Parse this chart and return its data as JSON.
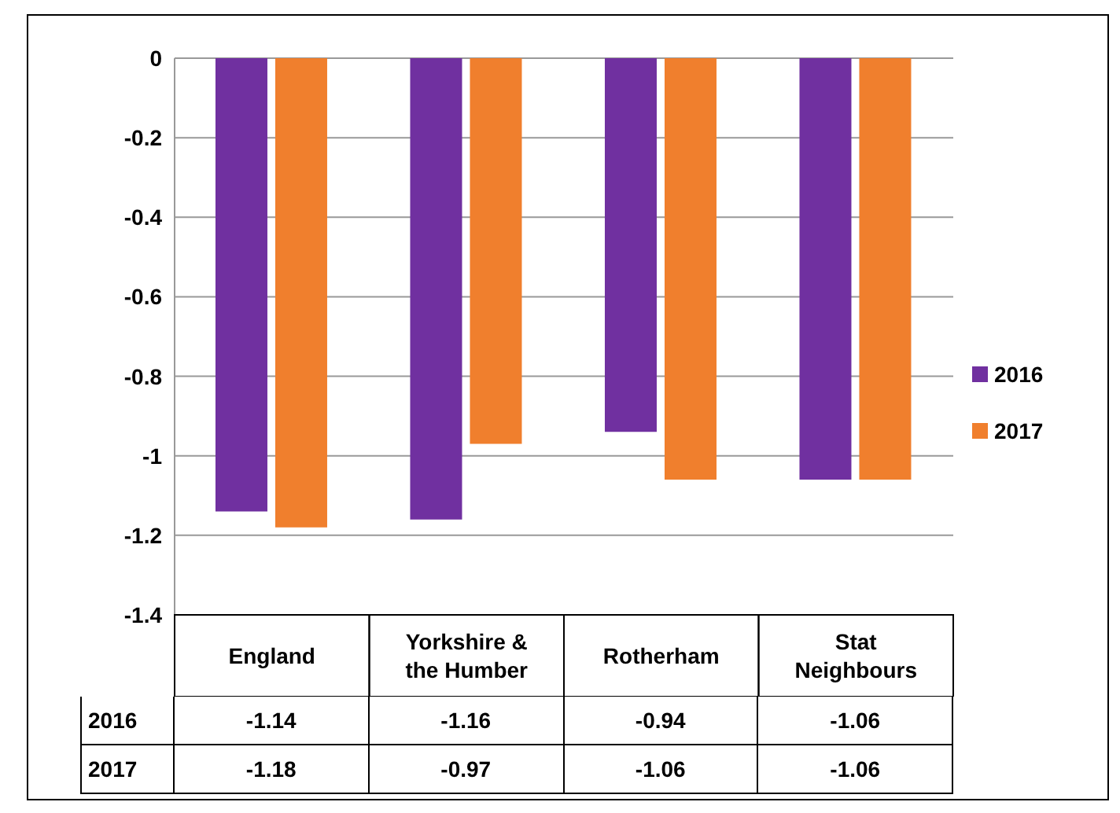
{
  "chart_data": {
    "type": "bar",
    "categories": [
      "England",
      "Yorkshire & the Humber",
      "Rotherham",
      "Stat Neighbours"
    ],
    "series": [
      {
        "name": "2016",
        "color": "#7030a0",
        "values": [
          -1.14,
          -1.16,
          -0.94,
          -1.06
        ]
      },
      {
        "name": "2017",
        "color": "#f07f2d",
        "values": [
          -1.18,
          -0.97,
          -1.06,
          -1.06
        ]
      }
    ],
    "ylim": [
      -1.4,
      0
    ],
    "yticks": [
      0,
      -0.2,
      -0.4,
      -0.6,
      -0.8,
      -1,
      -1.2,
      -1.4
    ],
    "grid": "y",
    "legend": "right",
    "data_labels": true
  }
}
